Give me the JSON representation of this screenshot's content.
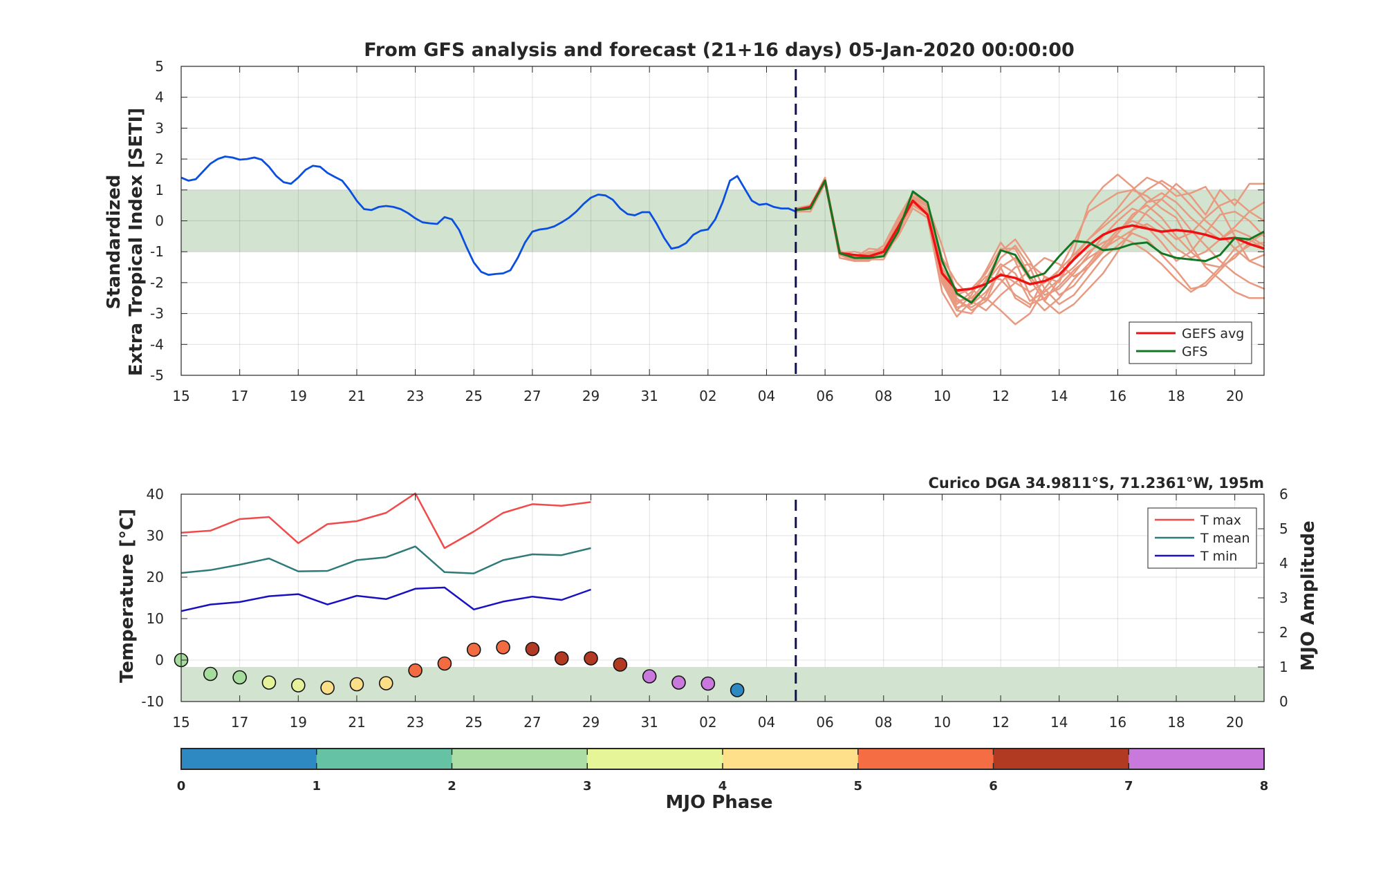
{
  "chart_data": [
    {
      "type": "line",
      "title": "From GFS analysis and forecast (21+16 days) 05-Jan-2020 00:00:00",
      "ylabel_line1": "Standardized",
      "ylabel_line2": "Extra Tropical Index [SETI]",
      "xlim": [
        0,
        37
      ],
      "ylim": [
        -5,
        5
      ],
      "x_ticks": [
        {
          "x": 0,
          "label": "15"
        },
        {
          "x": 2,
          "label": "17"
        },
        {
          "x": 4,
          "label": "19"
        },
        {
          "x": 6,
          "label": "21"
        },
        {
          "x": 8,
          "label": "23"
        },
        {
          "x": 10,
          "label": "25"
        },
        {
          "x": 12,
          "label": "27"
        },
        {
          "x": 14,
          "label": "29"
        },
        {
          "x": 16,
          "label": "31"
        },
        {
          "x": 18,
          "label": "02"
        },
        {
          "x": 20,
          "label": "04"
        },
        {
          "x": 22,
          "label": "06"
        },
        {
          "x": 24,
          "label": "08"
        },
        {
          "x": 26,
          "label": "10"
        },
        {
          "x": 28,
          "label": "12"
        },
        {
          "x": 30,
          "label": "14"
        },
        {
          "x": 32,
          "label": "16"
        },
        {
          "x": 34,
          "label": "18"
        },
        {
          "x": 36,
          "label": "20"
        }
      ],
      "y_ticks": [
        "-5",
        "-4",
        "-3",
        "-2",
        "-1",
        "0",
        "1",
        "2",
        "3",
        "4",
        "5"
      ],
      "normal_band": [
        -1,
        1
      ],
      "analysis_split_x": 21,
      "colors": {
        "observed": "#0b4fe0",
        "ensemble": "#e89a80",
        "gefs_avg": "#ee1111",
        "gfs": "#117722",
        "band": "#d2e4cf",
        "split": "#0f0f4f"
      },
      "observed": {
        "x": [
          0,
          0.25,
          0.5,
          0.75,
          1,
          1.25,
          1.5,
          1.75,
          2,
          2.25,
          2.5,
          2.75,
          3,
          3.25,
          3.5,
          3.75,
          4,
          4.25,
          4.5,
          4.75,
          5,
          5.25,
          5.5,
          5.75,
          6,
          6.25,
          6.5,
          6.75,
          7,
          7.25,
          7.5,
          7.75,
          8,
          8.25,
          8.5,
          8.75,
          9,
          9.25,
          9.5,
          9.75,
          10,
          10.25,
          10.5,
          10.75,
          11,
          11.25,
          11.5,
          11.75,
          12,
          12.25,
          12.5,
          12.75,
          13,
          13.25,
          13.5,
          13.75,
          14,
          14.25,
          14.5,
          14.75,
          15,
          15.25,
          15.5,
          15.75,
          16,
          16.25,
          16.5,
          16.75,
          17,
          17.25,
          17.5,
          17.75,
          18,
          18.25,
          18.5,
          18.75,
          19,
          19.25,
          19.5,
          19.75,
          20,
          20.25,
          20.5,
          20.75,
          21
        ],
        "y": [
          1.4,
          1.3,
          1.35,
          1.6,
          1.85,
          2.0,
          2.08,
          2.05,
          1.98,
          2.0,
          2.05,
          1.98,
          1.75,
          1.45,
          1.25,
          1.2,
          1.4,
          1.65,
          1.78,
          1.75,
          1.55,
          1.42,
          1.3,
          1.0,
          0.65,
          0.38,
          0.35,
          0.45,
          0.48,
          0.45,
          0.38,
          0.25,
          0.08,
          -0.05,
          -0.08,
          -0.1,
          0.12,
          0.05,
          -0.3,
          -0.85,
          -1.35,
          -1.65,
          -1.75,
          -1.72,
          -1.7,
          -1.6,
          -1.2,
          -0.7,
          -0.35,
          -0.28,
          -0.25,
          -0.18,
          -0.05,
          0.1,
          0.3,
          0.55,
          0.75,
          0.85,
          0.82,
          0.68,
          0.4,
          0.22,
          0.18,
          0.28,
          0.28,
          -0.1,
          -0.55,
          -0.9,
          -0.85,
          -0.72,
          -0.45,
          -0.32,
          -0.28,
          0.05,
          0.6,
          1.3,
          1.45,
          1.05,
          0.65,
          0.52,
          0.55,
          0.45,
          0.4,
          0.4,
          0.3
        ]
      },
      "forecast_x": [
        21,
        21.5,
        22,
        22.5,
        23,
        23.5,
        24,
        24.5,
        25,
        25.5,
        26,
        26.5,
        27,
        27.5,
        28,
        28.5,
        29,
        29.5,
        30,
        30.5,
        31,
        31.5,
        32,
        32.5,
        33,
        33.5,
        34,
        34.5,
        35,
        35.5,
        36,
        36.5,
        37
      ],
      "series": [
        {
          "name": "GEFS avg",
          "values": [
            0.35,
            0.45,
            1.3,
            -1.05,
            -1.1,
            -1.15,
            -1.0,
            -0.2,
            0.65,
            0.2,
            -1.7,
            -2.25,
            -2.2,
            -2.05,
            -1.75,
            -1.85,
            -2.05,
            -1.95,
            -1.75,
            -1.25,
            -0.8,
            -0.45,
            -0.25,
            -0.15,
            -0.25,
            -0.35,
            -0.3,
            -0.35,
            -0.45,
            -0.6,
            -0.55,
            -0.75,
            -0.9
          ]
        },
        {
          "name": "GFS",
          "values": [
            0.35,
            0.4,
            1.3,
            -1.05,
            -1.2,
            -1.2,
            -1.15,
            -0.35,
            0.95,
            0.6,
            -1.3,
            -2.35,
            -2.65,
            -2.1,
            -0.95,
            -1.1,
            -1.85,
            -1.7,
            -1.15,
            -0.65,
            -0.7,
            -0.95,
            -0.9,
            -0.75,
            -0.7,
            -1.05,
            -1.2,
            -1.25,
            -1.3,
            -1.1,
            -0.55,
            -0.6,
            -0.35
          ]
        }
      ],
      "ensemble_members": [
        [
          0.3,
          0.5,
          1.4,
          -1.1,
          -1.2,
          -0.9,
          -0.95,
          0.0,
          0.8,
          0.5,
          -0.8,
          -2.4,
          -2.2,
          -2.6,
          -1.5,
          -2.5,
          -2.8,
          -1.8,
          -2.0,
          -1.0,
          0.5,
          1.1,
          1.5,
          1.1,
          0.6,
          0.7,
          1.2,
          0.8,
          0.2,
          1.0,
          0.5,
          1.2,
          1.2
        ],
        [
          0.35,
          0.4,
          1.3,
          -1.0,
          -1.1,
          -1.2,
          -0.9,
          -0.3,
          0.7,
          0.6,
          -1.5,
          -2.6,
          -2.8,
          -2.5,
          -2.9,
          -3.35,
          -3.0,
          -2.2,
          -1.6,
          -0.7,
          0.3,
          0.6,
          0.9,
          1.0,
          0.8,
          0.4,
          0.1,
          -0.8,
          -1.5,
          -1.9,
          -2.3,
          -2.5,
          -2.5
        ],
        [
          0.4,
          0.5,
          1.3,
          -1.2,
          -1.3,
          -1.3,
          -1.0,
          -0.2,
          0.5,
          0.4,
          -1.8,
          -2.9,
          -3.0,
          -2.4,
          -1.5,
          -1.2,
          -1.9,
          -2.6,
          -1.9,
          -1.2,
          -0.6,
          -0.1,
          0.4,
          1.0,
          1.4,
          1.2,
          0.8,
          0.9,
          1.1,
          0.4,
          -0.5,
          -1.3,
          -1.1
        ],
        [
          0.3,
          0.3,
          1.2,
          -1.0,
          -1.3,
          -1.0,
          -1.1,
          -0.5,
          0.4,
          0.1,
          -2.3,
          -3.1,
          -2.6,
          -1.9,
          -1.0,
          -0.6,
          -1.3,
          -2.2,
          -2.7,
          -2.4,
          -1.8,
          -1.2,
          -0.8,
          -0.4,
          -0.6,
          -1.1,
          -1.6,
          -2.2,
          -2.1,
          -1.6,
          -1.1,
          -0.8,
          -0.7
        ],
        [
          0.35,
          0.45,
          1.35,
          -0.95,
          -1.3,
          -1.25,
          -1.25,
          -0.4,
          0.6,
          0.3,
          -2.0,
          -2.9,
          -2.4,
          -1.6,
          -0.7,
          -1.3,
          -2.4,
          -2.9,
          -2.5,
          -1.9,
          -1.4,
          -0.8,
          -0.3,
          0.0,
          -0.2,
          -0.7,
          -1.3,
          -1.0,
          -0.4,
          0.2,
          0.3,
          0.0,
          -0.5
        ],
        [
          0.3,
          0.4,
          1.3,
          -1.05,
          -1.0,
          -1.1,
          -0.8,
          0.1,
          0.9,
          0.5,
          -1.2,
          -2.0,
          -2.5,
          -2.0,
          -1.2,
          -0.8,
          -1.5,
          -2.6,
          -3.0,
          -2.7,
          -2.2,
          -1.7,
          -1.0,
          -0.3,
          0.3,
          0.7,
          0.3,
          -0.3,
          -0.8,
          -1.3,
          -1.7,
          -2.0,
          -2.2
        ],
        [
          0.35,
          0.45,
          1.3,
          -1.1,
          -1.2,
          -1.0,
          -1.0,
          -0.2,
          0.7,
          0.3,
          -1.6,
          -2.5,
          -2.9,
          -2.6,
          -2.0,
          -1.5,
          -1.4,
          -1.8,
          -2.4,
          -2.1,
          -1.5,
          -0.9,
          -0.4,
          0.2,
          0.5,
          0.1,
          -0.5,
          -1.0,
          -1.4,
          -1.5,
          -1.2,
          -0.7,
          -0.4
        ],
        [
          0.3,
          0.45,
          1.25,
          -1.05,
          -1.15,
          -1.15,
          -1.1,
          -0.3,
          0.5,
          0.2,
          -1.9,
          -2.8,
          -2.7,
          -2.3,
          -1.7,
          -2.0,
          -2.3,
          -2.0,
          -1.6,
          -1.1,
          -0.6,
          -0.2,
          0.2,
          0.6,
          1.0,
          1.3,
          1.0,
          0.5,
          0.0,
          -0.4,
          -0.9,
          -1.3,
          -1.5
        ],
        [
          0.35,
          0.5,
          1.35,
          -1.0,
          -1.25,
          -1.05,
          -0.95,
          -0.1,
          0.75,
          0.45,
          -1.3,
          -2.3,
          -2.2,
          -1.7,
          -0.9,
          -0.9,
          -1.8,
          -2.4,
          -2.2,
          -1.7,
          -1.1,
          -0.5,
          0.0,
          0.4,
          0.2,
          -0.2,
          -0.6,
          -0.4,
          0.1,
          0.5,
          0.7,
          0.3,
          0.0
        ],
        [
          0.3,
          0.4,
          1.3,
          -1.1,
          -1.3,
          -1.2,
          -1.05,
          -0.35,
          0.55,
          0.25,
          -1.7,
          -2.6,
          -2.5,
          -2.0,
          -1.4,
          -1.7,
          -2.6,
          -2.3,
          -1.9,
          -1.5,
          -1.0,
          -0.7,
          -0.5,
          -0.7,
          -1.0,
          -1.4,
          -1.9,
          -2.3,
          -2.0,
          -1.5,
          -0.9,
          -0.6,
          -0.9
        ],
        [
          0.35,
          0.45,
          1.3,
          -1.05,
          -1.15,
          -1.1,
          -0.9,
          -0.15,
          0.7,
          0.35,
          -1.5,
          -2.4,
          -2.6,
          -2.9,
          -2.4,
          -2.0,
          -1.6,
          -1.2,
          -1.4,
          -1.8,
          -1.5,
          -1.0,
          -0.4,
          0.1,
          0.6,
          0.9,
          0.6,
          0.1,
          -0.3,
          -0.6,
          -0.2,
          0.3,
          0.6
        ],
        [
          0.3,
          0.45,
          1.3,
          -1.0,
          -1.2,
          -1.15,
          -1.0,
          -0.25,
          0.6,
          0.3,
          -1.8,
          -2.7,
          -2.3,
          -1.8,
          -1.9,
          -2.4,
          -2.7,
          -2.5,
          -2.1,
          -1.6,
          -1.2,
          -0.9,
          -0.6,
          -0.3,
          -0.1,
          -0.4,
          -0.9,
          -1.2,
          -1.0,
          -0.6,
          -0.3,
          -0.5,
          -0.8
        ]
      ],
      "legend": [
        {
          "label": "GEFS avg"
        },
        {
          "label": "GFS"
        }
      ]
    },
    {
      "type": "line",
      "annotation": "Curico DGA 34.9811°S, 71.2361°W, 195m",
      "ylabel_left": "Temperature [°C]",
      "ylabel_right": "MJO Amplitude",
      "xlim": [
        0,
        37
      ],
      "ylim_left": [
        -10,
        40
      ],
      "ylim_right": [
        0,
        6
      ],
      "left_ticks": [
        "-10",
        "0",
        "10",
        "20",
        "30",
        "40"
      ],
      "right_ticks": [
        "0",
        "1",
        "2",
        "3",
        "4",
        "5",
        "6"
      ],
      "x_ticks": [
        {
          "x": 0,
          "label": "15"
        },
        {
          "x": 2,
          "label": "17"
        },
        {
          "x": 4,
          "label": "19"
        },
        {
          "x": 6,
          "label": "21"
        },
        {
          "x": 8,
          "label": "23"
        },
        {
          "x": 10,
          "label": "25"
        },
        {
          "x": 12,
          "label": "27"
        },
        {
          "x": 14,
          "label": "29"
        },
        {
          "x": 16,
          "label": "31"
        },
        {
          "x": 18,
          "label": "02"
        },
        {
          "x": 20,
          "label": "04"
        },
        {
          "x": 22,
          "label": "06"
        },
        {
          "x": 24,
          "label": "08"
        },
        {
          "x": 26,
          "label": "10"
        },
        {
          "x": 28,
          "label": "12"
        },
        {
          "x": 30,
          "label": "14"
        },
        {
          "x": 32,
          "label": "16"
        },
        {
          "x": 34,
          "label": "18"
        },
        {
          "x": 36,
          "label": "20"
        }
      ],
      "band_right": [
        0,
        1
      ],
      "analysis_split_x": 21,
      "temp_x": [
        0,
        1,
        2,
        3,
        4,
        5,
        6,
        7,
        8,
        9,
        10,
        11,
        12,
        13,
        14
      ],
      "series": [
        {
          "name": "T max",
          "color": "#f04a4a",
          "values": [
            30.7,
            31.2,
            34.0,
            34.5,
            28.2,
            32.8,
            33.5,
            35.5,
            40.2,
            27.0,
            31.0,
            35.5,
            37.6,
            37.2,
            38.1
          ]
        },
        {
          "name": "T mean",
          "color": "#2e7a78",
          "values": [
            21.0,
            21.7,
            23.0,
            24.5,
            21.4,
            21.5,
            24.1,
            24.8,
            27.4,
            21.2,
            20.9,
            24.1,
            25.5,
            25.3,
            27.0
          ]
        },
        {
          "name": "T min",
          "color": "#1a10c0",
          "values": [
            11.8,
            13.4,
            14.0,
            15.4,
            15.9,
            13.4,
            15.5,
            14.7,
            17.2,
            17.5,
            12.2,
            14.1,
            15.3,
            14.5,
            17.0
          ]
        }
      ],
      "mjo_points": {
        "x": [
          0,
          1,
          2,
          3,
          4,
          5,
          6,
          7,
          8,
          9,
          10,
          11,
          12,
          13,
          14,
          15,
          16,
          17,
          18,
          19
        ],
        "amplitude": [
          1.2,
          0.8,
          0.7,
          0.55,
          0.47,
          0.4,
          0.5,
          0.53,
          0.9,
          1.1,
          1.5,
          1.57,
          1.52,
          1.25,
          1.25,
          1.07,
          0.73,
          0.55,
          0.52,
          0.33
        ],
        "phase_color": [
          "#a7dc9f",
          "#a7dc9f",
          "#a7dc9f",
          "#e4f29a",
          "#e4f29a",
          "#fbdf88",
          "#fbdf88",
          "#fbdf88",
          "#f26b42",
          "#f26b42",
          "#f26b42",
          "#f26b42",
          "#b33a22",
          "#b33a22",
          "#b33a22",
          "#b33a22",
          "#c978db",
          "#c978db",
          "#c978db",
          "#2e89c2"
        ]
      },
      "legend": [
        {
          "label": "T max"
        },
        {
          "label": "T mean"
        },
        {
          "label": "T min"
        }
      ]
    }
  ],
  "colorbar": {
    "label": "MJO Phase",
    "tick_labels": [
      "0",
      "1",
      "2",
      "3",
      "4",
      "5",
      "6",
      "7",
      "8"
    ],
    "colors": [
      "#2e89c2",
      "#66c2a5",
      "#abdda4",
      "#e6f598",
      "#fee08b",
      "#f46d43",
      "#b13a22",
      "#c978db"
    ]
  }
}
